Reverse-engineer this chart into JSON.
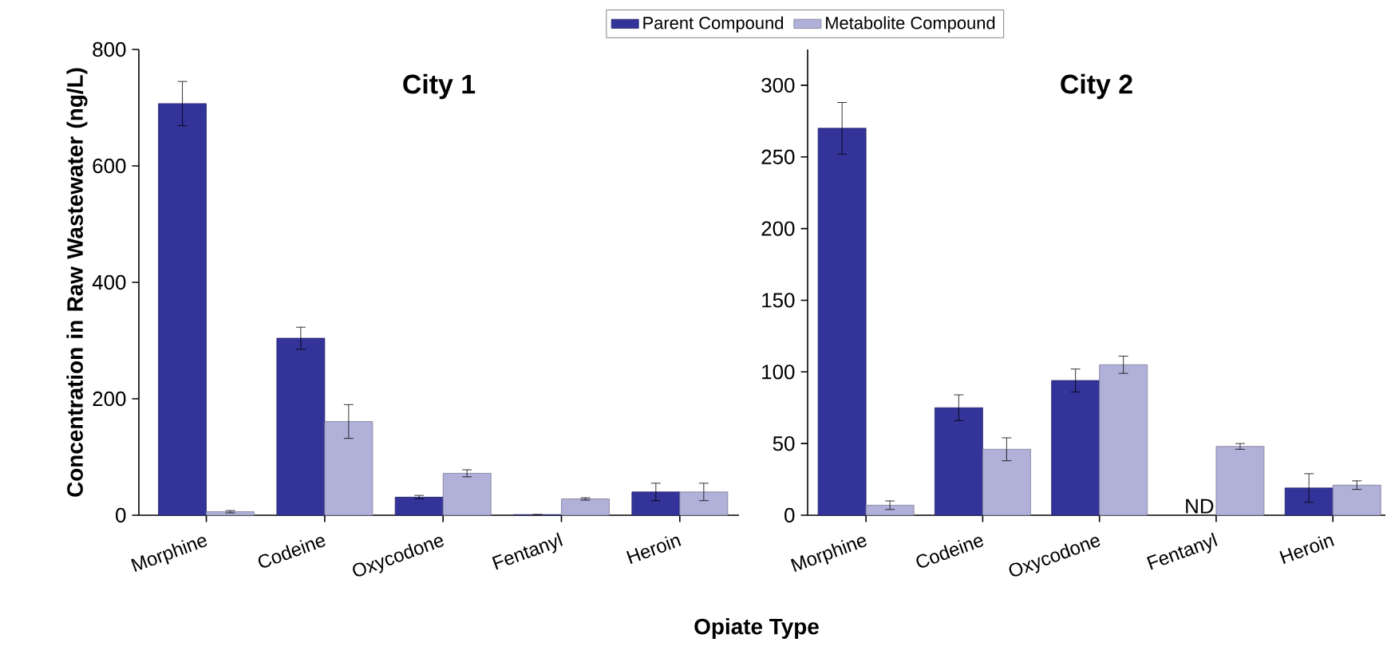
{
  "chart_data": [
    {
      "type": "bar",
      "title": "City 1",
      "xlabel": "Opiate Type",
      "ylabel": "Concentration in Raw Wastewater (ng/L)",
      "categories": [
        "Morphine",
        "Codeine",
        "Oxycodone",
        "Fentanyl",
        "Heroin"
      ],
      "series": [
        {
          "name": "Parent Compound",
          "color": "#333399",
          "values": [
            707,
            304,
            31,
            1,
            40
          ],
          "errors": [
            38,
            19,
            3,
            null,
            15
          ]
        },
        {
          "name": "Metabolite Compound",
          "color": "#b0b0d8",
          "values": [
            6,
            161,
            72,
            28,
            40
          ],
          "errors": [
            2,
            29,
            6,
            2,
            15
          ]
        }
      ],
      "ylim": [
        0,
        800
      ],
      "yticks": [
        0,
        200,
        400,
        600,
        800
      ],
      "legend": "top",
      "grid": false
    },
    {
      "type": "bar",
      "title": "City 2",
      "categories": [
        "Morphine",
        "Codeine",
        "Oxycodone",
        "Fentanyl",
        "Heroin"
      ],
      "series": [
        {
          "color": "#333399",
          "values": [
            270,
            75,
            94,
            null,
            19
          ],
          "errors": [
            18,
            9,
            8,
            null,
            10
          ]
        },
        {
          "color": "#b0b0d8",
          "values": [
            7,
            46,
            105,
            48,
            21
          ],
          "errors": [
            3,
            8,
            6,
            2,
            3
          ]
        }
      ],
      "ylim": [
        0,
        325
      ],
      "yticks": [
        0,
        50,
        100,
        150,
        200,
        250,
        300
      ],
      "annotations": [
        {
          "text": "ND",
          "x": "Fentanyl",
          "y": 0
        }
      ],
      "grid": false
    }
  ]
}
